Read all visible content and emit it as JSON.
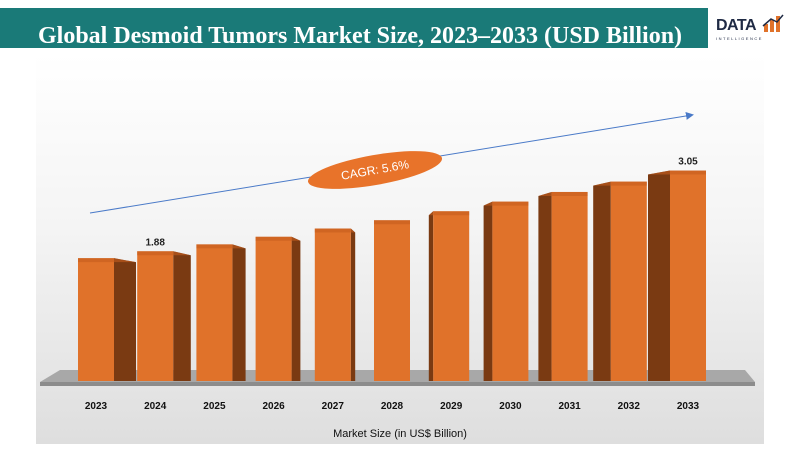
{
  "header": {
    "title": "Global Desmoid Tumors Market Size, 2023–2033 (USD Billion)",
    "logo_text": "DATA",
    "logo_subtext": "INTELLIGENCE"
  },
  "colors": {
    "header_bg": "#1a7a78",
    "bar_front": "#e0722a",
    "bar_side": "#7a3a12",
    "floor": "#a8a8a8",
    "cagr_ellipse": "#e8732a",
    "trend_arrow": "#4a7ac8"
  },
  "chart_data": {
    "type": "bar",
    "categories": [
      "2023",
      "2024",
      "2025",
      "2026",
      "2027",
      "2028",
      "2029",
      "2030",
      "2031",
      "2032",
      "2033"
    ],
    "values": [
      1.78,
      1.88,
      1.98,
      2.09,
      2.21,
      2.33,
      2.46,
      2.6,
      2.74,
      2.89,
      3.05
    ],
    "data_labels": [
      {
        "category": "2024",
        "text": "1.88"
      },
      {
        "category": "2033",
        "text": "3.05"
      }
    ],
    "annotation": "CAGR: 5.6%",
    "xlabel": "Market Size (in US$ Billion)",
    "ylabel": "",
    "grid": false,
    "legend": "none"
  }
}
